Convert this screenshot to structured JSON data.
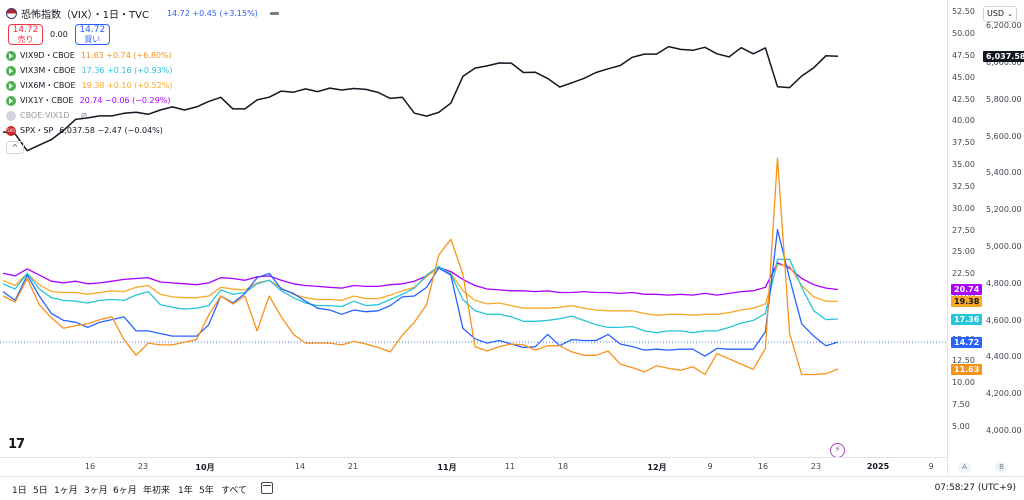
{
  "header": {
    "title": "恐怖指数（VIX）・1日・TVC",
    "value": "14.72 +0.45 (+3.15%)",
    "sell_price": "14.72",
    "sell_label": "売り",
    "spread": "0.00",
    "buy_price": "14.72",
    "buy_label": "買い"
  },
  "series": [
    {
      "name": "VIX9D・CBOE",
      "value": "11.63 +0.74 (+6.80%)",
      "color": "#f7931a"
    },
    {
      "name": "VIX3M・CBOE",
      "value": "17.36 +0.16 (+0.93%)",
      "color": "#26c6da"
    },
    {
      "name": "VIX6M・CBOE",
      "value": "19.38 +0.10 (+0.52%)",
      "color": "#f9a825"
    },
    {
      "name": "VIX1Y・CBOE",
      "value": "20.74 −0.06 (−0.29%)",
      "color": "#aa00ff"
    }
  ],
  "hidden_series": {
    "name": "CBOE:VIX1D"
  },
  "spx": {
    "icon_text": "500",
    "name": "SPX・SP",
    "value": "6,037.58 −2.47 (−0.04%)",
    "color": "#131722"
  },
  "collapse_label": "^",
  "currency": "USD",
  "left_axis_ticks": [
    "52.50",
    "50.00",
    "47.50",
    "45.00",
    "42.50",
    "40.00",
    "37.50",
    "35.00",
    "32.50",
    "30.00",
    "27.50",
    "25.00",
    "22.50",
    "20.00",
    "17.50",
    "15.00",
    "12.50",
    "10.00",
    "7.50",
    "5.00"
  ],
  "right_axis_ticks": [
    "6,200.00",
    "6,000.00",
    "5,800.00",
    "5,600.00",
    "5,400.00",
    "5,200.00",
    "5,000.00",
    "4,800.00",
    "4,600.00",
    "4,400.00",
    "4,200.00",
    "4,000.00"
  ],
  "price_tags": {
    "spx": "6,037.58",
    "vix1y": "20.74",
    "vix6m": "19.38",
    "vix3m": "17.36",
    "vix": "14.72",
    "vix9d": "11.63"
  },
  "time_axis": [
    {
      "label": "16",
      "bold": false
    },
    {
      "label": "23",
      "bold": false
    },
    {
      "label": "10月",
      "bold": true
    },
    {
      "label": "14",
      "bold": false
    },
    {
      "label": "21",
      "bold": false
    },
    {
      "label": "11月",
      "bold": true
    },
    {
      "label": "11",
      "bold": false
    },
    {
      "label": "18",
      "bold": false
    },
    {
      "label": "12月",
      "bold": true
    },
    {
      "label": "9",
      "bold": false
    },
    {
      "label": "16",
      "bold": false
    },
    {
      "label": "23",
      "bold": false
    },
    {
      "label": "2025",
      "bold": true
    },
    {
      "label": "9",
      "bold": false
    }
  ],
  "axis_buttons": [
    "A",
    "B"
  ],
  "range_buttons": [
    "1日",
    "5日",
    "1ヶ月",
    "3ヶ月",
    "6ヶ月",
    "年初来",
    "1年",
    "5年",
    "すべて"
  ],
  "clock": "07:58:27 (UTC+9)",
  "logo": "17",
  "chart_data": {
    "type": "line",
    "left_axis": {
      "range": [
        3.5,
        53.0
      ]
    },
    "right_axis": {
      "range": [
        3950,
        6300
      ]
    },
    "series": [
      {
        "key": "spx",
        "name": "SPX・SP",
        "color": "#131722",
        "axis": "right",
        "values": [
          5626,
          5615,
          5524,
          5554,
          5584,
          5634,
          5694,
          5702,
          5713,
          5713,
          5727,
          5733,
          5722,
          5745,
          5762,
          5745,
          5762,
          5792,
          5814,
          5751,
          5751,
          5800,
          5815,
          5848,
          5842,
          5860,
          5845,
          5864,
          5854,
          5862,
          5857,
          5841,
          5808,
          5815,
          5728,
          5712,
          5732,
          5782,
          5928,
          5973,
          5985,
          6001,
          6000,
          5949,
          5950,
          5917,
          5870,
          5893,
          5917,
          5949,
          5969,
          5987,
          6032,
          6049,
          6049,
          6090,
          6075,
          6070,
          6086,
          6051,
          6034,
          6084,
          6051,
          6083,
          5872,
          5867,
          5930,
          5975,
          6040,
          6037
        ]
      },
      {
        "key": "vix1y",
        "name": "VIX1Y・CBOE",
        "color": "#aa00ff",
        "axis": "left",
        "values": [
          22.6,
          22.3,
          23.1,
          22.4,
          21.7,
          21.5,
          21.7,
          21.4,
          21.5,
          21.7,
          21.9,
          22.0,
          22.1,
          21.6,
          21.5,
          21.4,
          21.3,
          21.5,
          22.1,
          22.0,
          21.8,
          22.2,
          22.3,
          21.8,
          21.4,
          21.2,
          21.1,
          21.0,
          20.9,
          21.2,
          21.1,
          21.1,
          21.3,
          21.4,
          21.7,
          22.3,
          23.3,
          22.8,
          21.9,
          21.2,
          20.8,
          20.7,
          20.6,
          20.6,
          20.5,
          20.6,
          20.4,
          20.4,
          20.5,
          20.4,
          20.4,
          20.3,
          20.4,
          20.2,
          20.2,
          20.1,
          20.2,
          20.1,
          20.3,
          20.1,
          20.3,
          20.5,
          20.6,
          21.0,
          23.8,
          23.2,
          22.0,
          21.3,
          20.9,
          20.74
        ]
      },
      {
        "key": "vix6m",
        "name": "VIX6M・CBOE",
        "color": "#f9a825",
        "axis": "left",
        "values": [
          21.8,
          21.2,
          22.6,
          21.3,
          20.5,
          20.4,
          20.4,
          20.2,
          20.4,
          20.6,
          20.5,
          21.0,
          21.2,
          20.2,
          19.9,
          19.8,
          19.8,
          20.0,
          21.0,
          20.8,
          20.7,
          21.5,
          21.8,
          20.9,
          20.2,
          19.8,
          19.6,
          19.6,
          19.5,
          20.0,
          19.7,
          19.7,
          20.1,
          20.6,
          21.0,
          22.2,
          23.3,
          22.6,
          20.6,
          19.5,
          19.1,
          19.2,
          18.9,
          18.6,
          18.6,
          18.6,
          18.7,
          18.9,
          18.6,
          18.4,
          18.3,
          18.3,
          18.3,
          18.0,
          17.8,
          17.9,
          17.9,
          17.8,
          17.9,
          17.9,
          18.1,
          18.4,
          18.6,
          19.1,
          23.6,
          23.4,
          21.2,
          19.9,
          19.4,
          19.38
        ]
      },
      {
        "key": "vix3m",
        "name": "VIX3M・CBOE",
        "color": "#26c6da",
        "axis": "left",
        "values": [
          21.4,
          20.8,
          22.6,
          20.8,
          19.8,
          19.5,
          19.4,
          19.2,
          19.5,
          19.6,
          19.5,
          20.1,
          20.5,
          19.0,
          18.7,
          18.5,
          18.6,
          18.9,
          20.7,
          20.2,
          20.4,
          21.4,
          21.8,
          20.6,
          19.8,
          19.2,
          18.9,
          18.9,
          18.8,
          19.4,
          18.9,
          19.0,
          19.6,
          20.2,
          20.9,
          22.4,
          23.4,
          22.5,
          19.6,
          18.3,
          17.9,
          17.9,
          17.6,
          17.1,
          17.1,
          17.2,
          17.4,
          17.7,
          17.2,
          16.7,
          16.4,
          16.4,
          16.5,
          16.0,
          15.8,
          16.0,
          16.0,
          15.8,
          16.0,
          16.0,
          16.4,
          16.9,
          17.2,
          18.0,
          24.2,
          24.2,
          21.0,
          18.3,
          17.3,
          17.36
        ]
      },
      {
        "key": "vix",
        "name": "恐怖指数（VIX）",
        "color": "#2962ff",
        "axis": "left",
        "values": [
          20.5,
          19.5,
          22.4,
          20.0,
          18.0,
          17.2,
          17.0,
          16.4,
          17.0,
          17.3,
          17.6,
          16.0,
          16.0,
          15.7,
          15.4,
          15.4,
          15.4,
          16.7,
          20.0,
          19.2,
          20.3,
          22.1,
          22.6,
          20.8,
          20.3,
          19.4,
          18.6,
          18.4,
          17.9,
          18.4,
          18.2,
          18.3,
          18.9,
          19.9,
          20.0,
          21.0,
          23.2,
          22.4,
          16.3,
          15.1,
          14.6,
          14.9,
          14.5,
          14.1,
          14.2,
          15.6,
          14.3,
          15.0,
          14.9,
          14.9,
          15.6,
          14.5,
          14.2,
          13.8,
          13.9,
          13.8,
          13.9,
          13.9,
          13.1,
          14.0,
          13.9,
          13.9,
          13.9,
          15.9,
          27.6,
          22.0,
          16.8,
          15.4,
          14.3,
          14.72
        ]
      },
      {
        "key": "vix9d",
        "name": "VIX9D・CBOE",
        "color": "#f7931a",
        "axis": "left",
        "values": [
          20.0,
          19.3,
          22.0,
          19.0,
          17.5,
          16.3,
          16.6,
          16.8,
          17.3,
          17.6,
          15.0,
          13.2,
          14.6,
          14.4,
          14.4,
          14.7,
          15.0,
          17.8,
          20.0,
          19.1,
          20.0,
          16.0,
          20.0,
          17.6,
          15.6,
          14.6,
          14.6,
          14.6,
          14.4,
          14.8,
          14.5,
          14.1,
          13.6,
          15.5,
          17.0,
          19.0,
          24.7,
          26.5,
          22.5,
          14.2,
          13.7,
          14.2,
          14.5,
          14.4,
          13.8,
          14.3,
          14.3,
          13.6,
          13.2,
          13.2,
          13.7,
          12.2,
          11.8,
          11.3,
          12.0,
          11.7,
          11.5,
          11.9,
          11.0,
          13.4,
          12.8,
          12.2,
          11.6,
          14.0,
          35.8,
          15.7,
          11.0,
          11.0,
          11.1,
          11.63
        ]
      }
    ],
    "x_axis_labels": [
      "16",
      "23",
      "10月",
      "14",
      "21",
      "11月",
      "11",
      "18",
      "12月",
      "9",
      "16",
      "23",
      "2025",
      "9"
    ],
    "grid": false,
    "legend_position": "top-left"
  }
}
